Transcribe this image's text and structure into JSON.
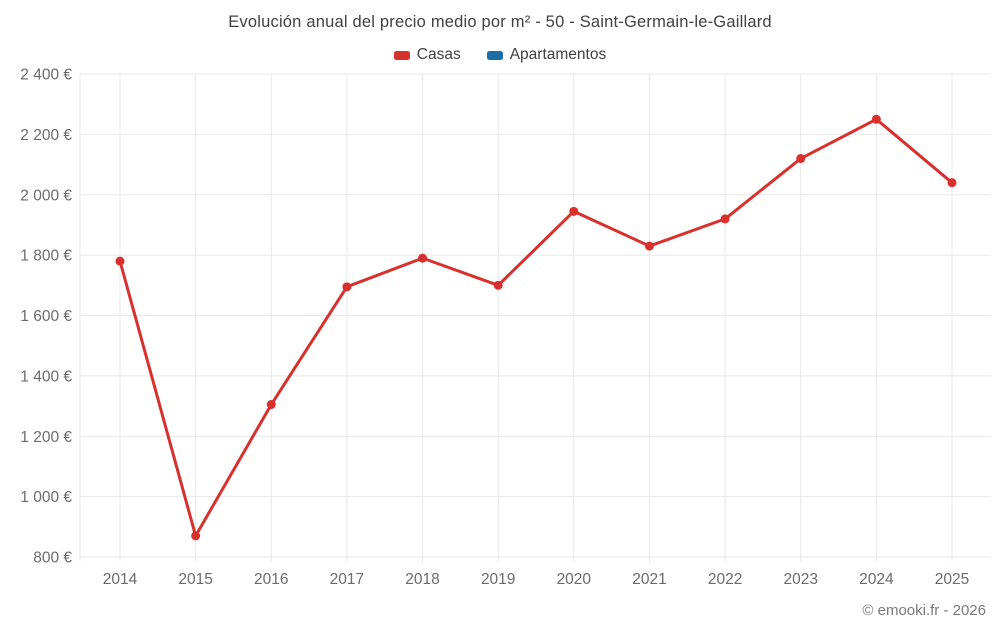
{
  "page": {
    "footer_credit": "© emooki.fr - 2026"
  },
  "colors": {
    "grid": "#e8e8e8",
    "axis_text": "#6b6b6b",
    "title_text": "#414141",
    "footer_text": "#7a7a7a",
    "casas": "#d7312e",
    "apartamentos": "#1a6fa5"
  },
  "chart_data": {
    "type": "line",
    "title": "Evolución anual del precio medio por m² - 50 - Saint-Germain-le-Gaillard",
    "categories": [
      "2014",
      "2015",
      "2016",
      "2017",
      "2018",
      "2019",
      "2020",
      "2021",
      "2022",
      "2023",
      "2024",
      "2025"
    ],
    "series": [
      {
        "name": "Casas",
        "color": "#d7312e",
        "values": [
          1780,
          870,
          1305,
          1695,
          1790,
          1700,
          1945,
          1830,
          1920,
          2120,
          2250,
          2040
        ]
      },
      {
        "name": "Apartamentos",
        "color": "#1a6fa5",
        "values": []
      }
    ],
    "xlabel": "",
    "ylabel": "",
    "ylim": [
      800,
      2400
    ],
    "ytick_step": 200,
    "ytick_suffix": " €",
    "grid": true,
    "legend_position": "top"
  }
}
